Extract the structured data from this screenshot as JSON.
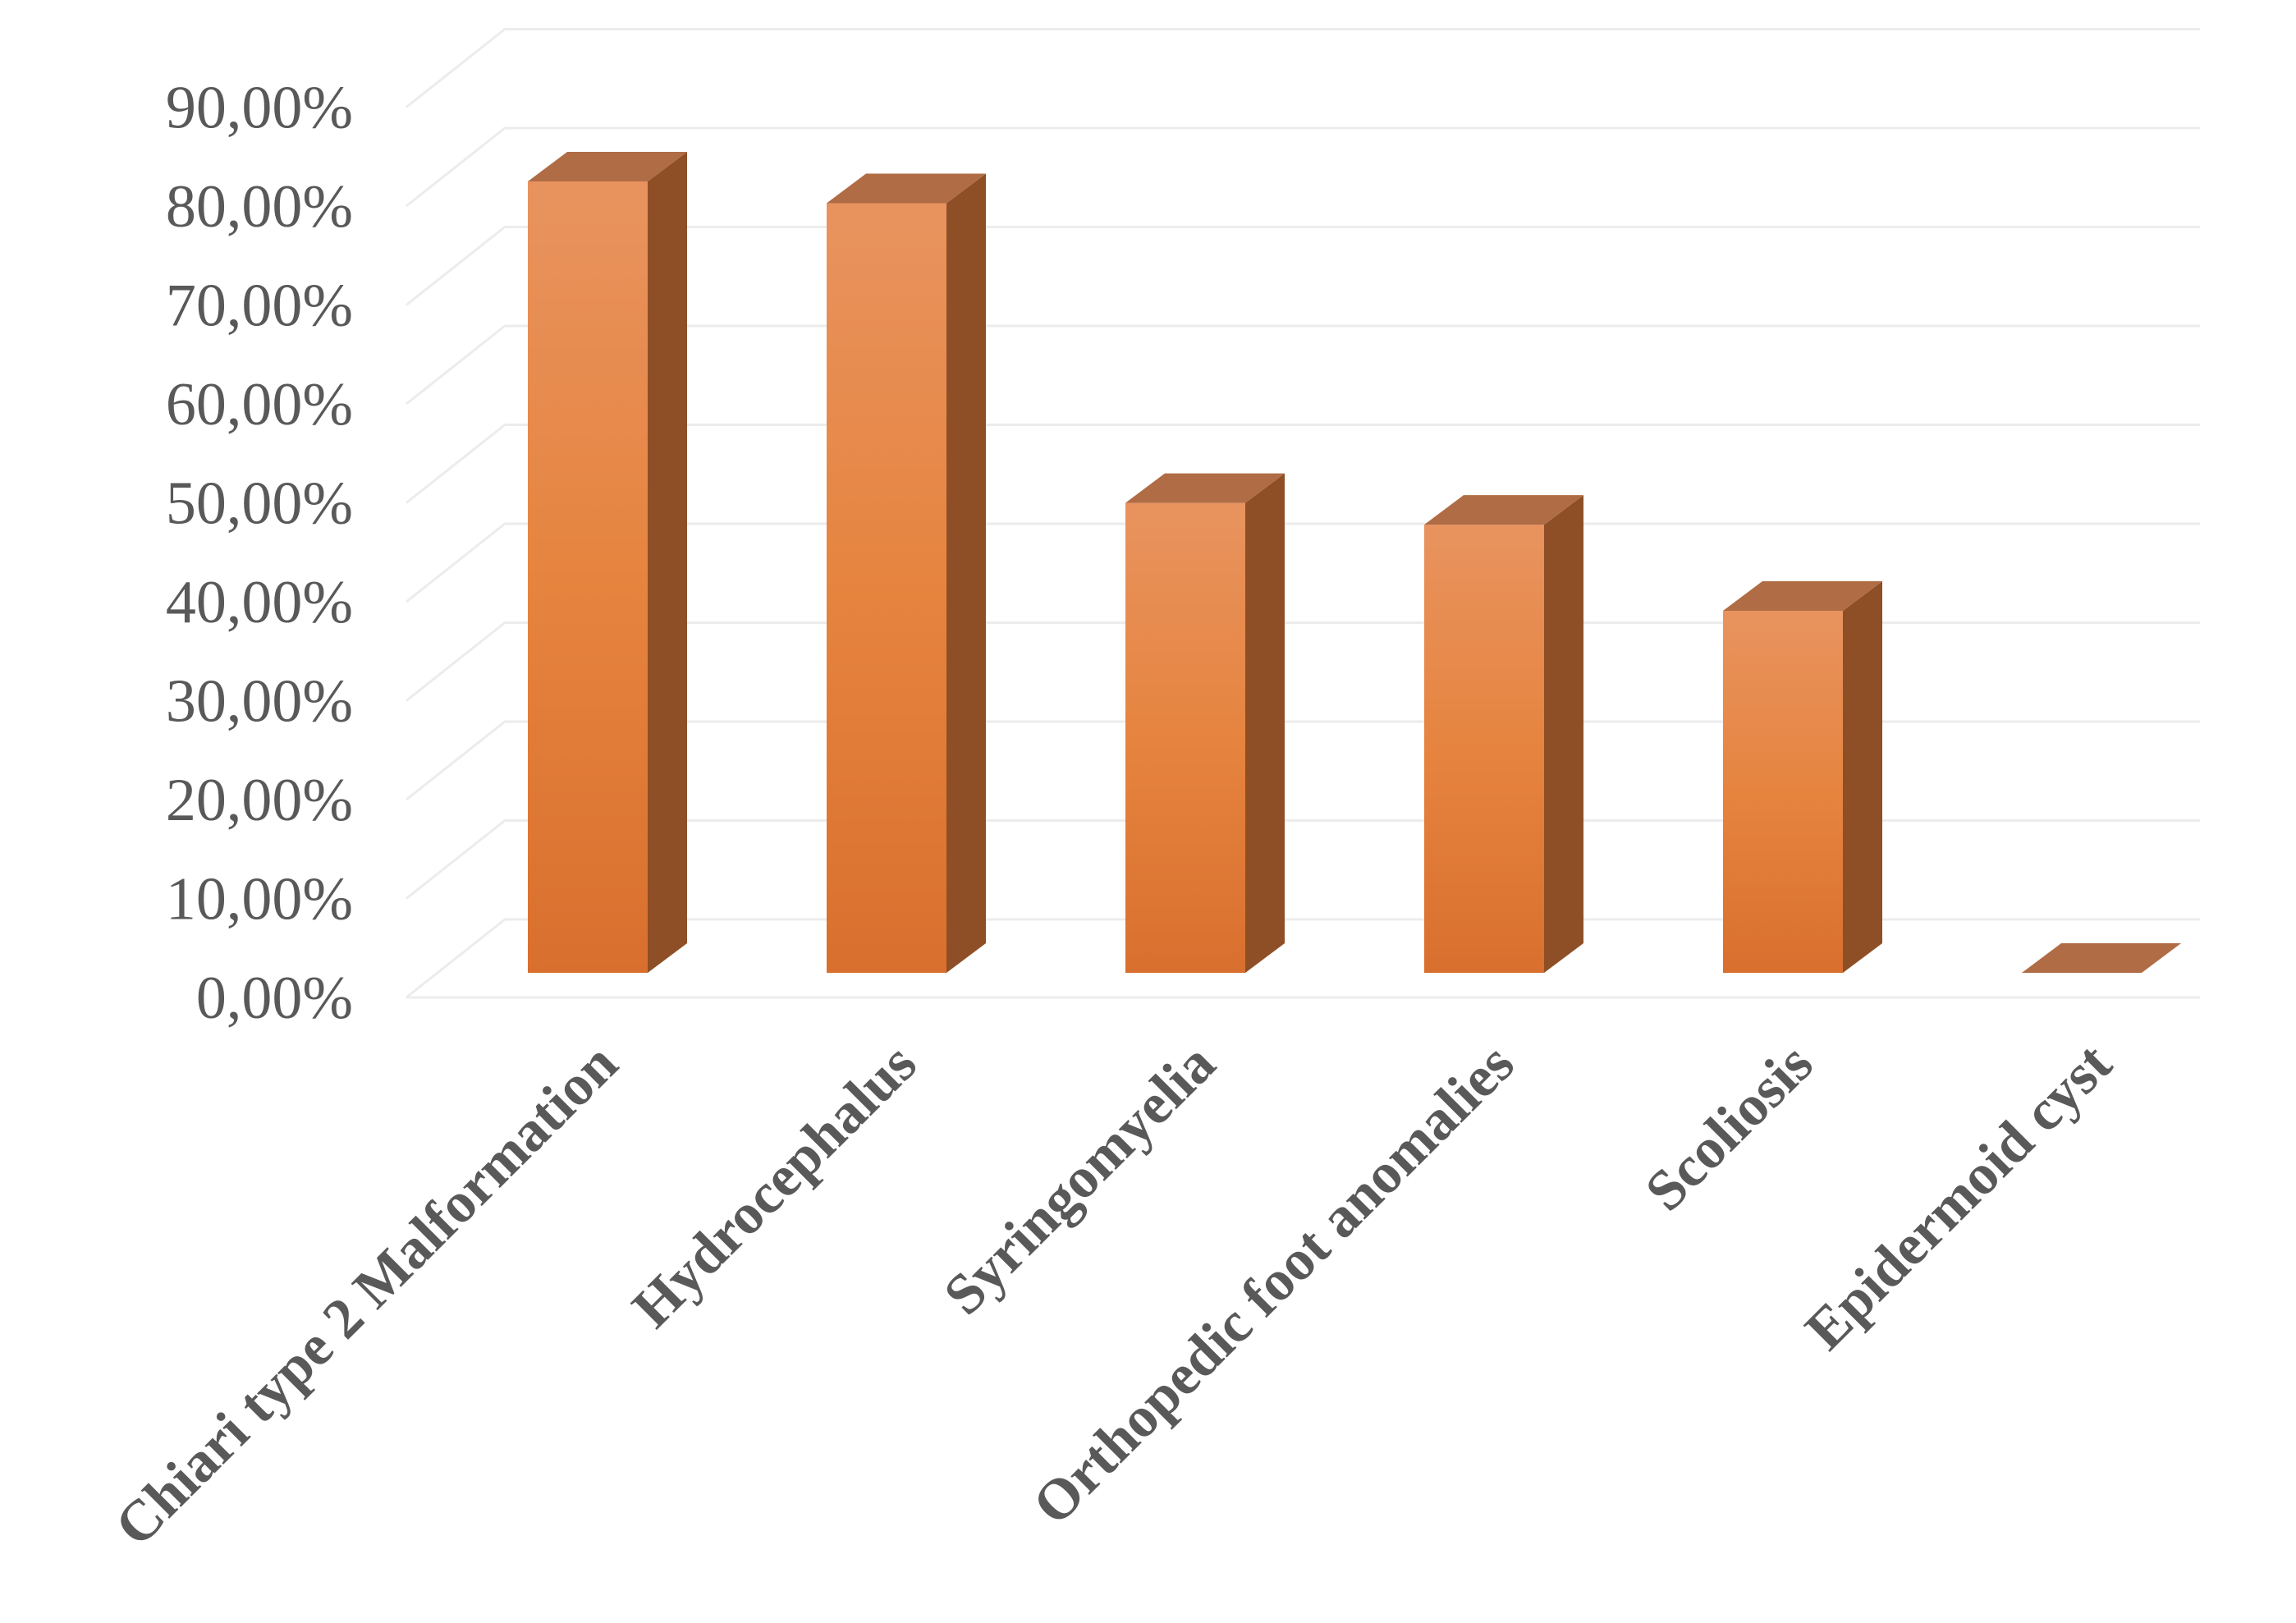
{
  "chart_data": {
    "type": "bar",
    "title": "",
    "xlabel": "",
    "ylabel": "",
    "categories": [
      "Chiari type 2 Malformation",
      "Hydrocephalus",
      "Syringomyelia",
      "Orthopedic foot anomalies",
      "Scoliosis",
      "Epidermoid cyst"
    ],
    "values": [
      80.0,
      77.8,
      47.5,
      45.3,
      36.6,
      0.0
    ],
    "ylim": [
      0,
      90
    ],
    "yticks": [
      0,
      10,
      20,
      30,
      40,
      50,
      60,
      70,
      80,
      90
    ],
    "ytick_labels": [
      "0,00%",
      "10,00%",
      "20,00%",
      "30,00%",
      "40,00%",
      "50,00%",
      "60,00%",
      "70,00%",
      "80,00%",
      "90,00%"
    ],
    "style": "3d-column",
    "grid": true,
    "legend": "none",
    "colors": {
      "front_top": "#e8935f",
      "front_mid": "#e6843f",
      "front_bottom": "#d96f2e",
      "side": "#8e4f26",
      "top": "#b06c45",
      "grid": "#ececec"
    }
  }
}
